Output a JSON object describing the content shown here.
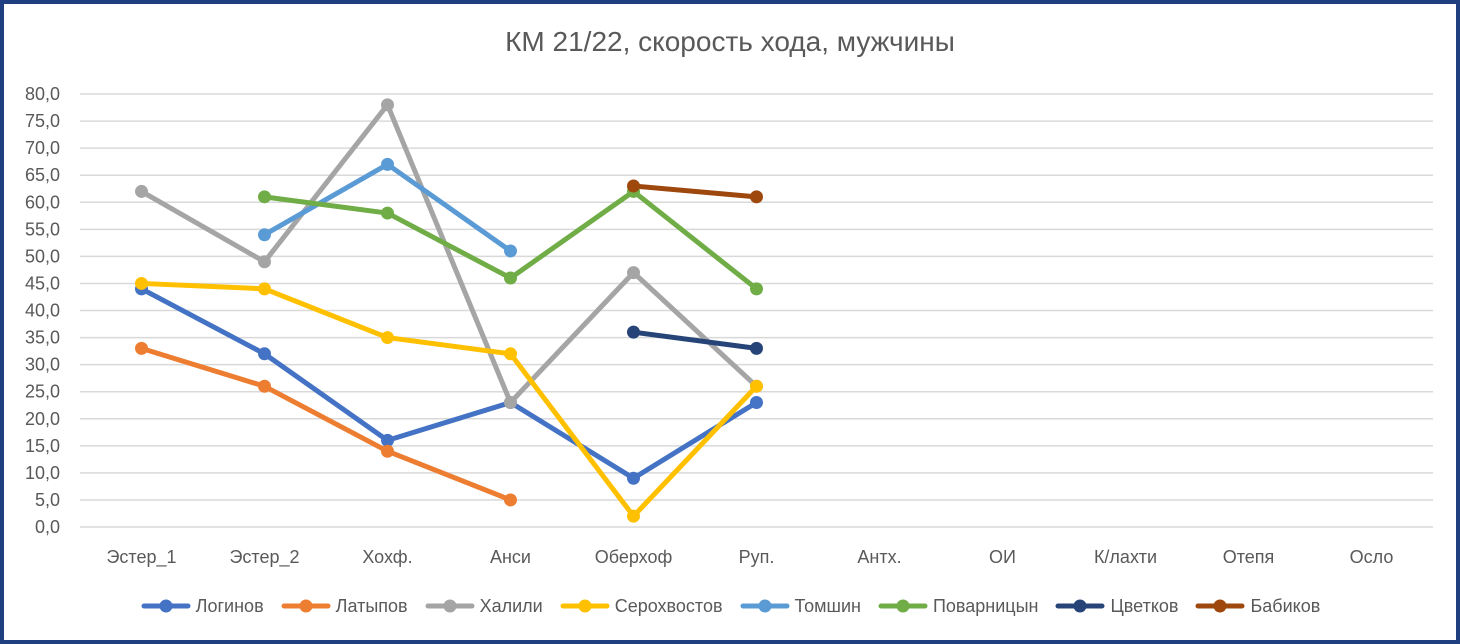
{
  "chart_data": {
    "type": "line",
    "title": "КМ 21/22, скорость хода, мужчины",
    "xlabel": "",
    "ylabel": "",
    "categories": [
      "Эстер_1",
      "Эстер_2",
      "Хохф.",
      "Анси",
      "Оберхоф",
      "Руп.",
      "Антх.",
      "ОИ",
      "К/лахти",
      "Отепя",
      "Осло"
    ],
    "ylim": [
      0,
      80
    ],
    "yticks": [
      "0,0",
      "5,0",
      "10,0",
      "15,0",
      "20,0",
      "25,0",
      "30,0",
      "35,0",
      "40,0",
      "45,0",
      "50,0",
      "55,0",
      "60,0",
      "65,0",
      "70,0",
      "75,0",
      "80,0"
    ],
    "ytick_values": [
      0,
      5,
      10,
      15,
      20,
      25,
      30,
      35,
      40,
      45,
      50,
      55,
      60,
      65,
      70,
      75,
      80
    ],
    "grid": true,
    "legend_position": "bottom",
    "series": [
      {
        "name": "Логинов",
        "color": "#4472c4",
        "values": [
          44,
          32,
          16,
          23,
          9,
          23,
          null,
          null,
          null,
          null,
          null
        ]
      },
      {
        "name": "Латыпов",
        "color": "#ed7d31",
        "values": [
          33,
          26,
          14,
          5,
          null,
          null,
          null,
          null,
          null,
          null,
          null
        ]
      },
      {
        "name": "Халили",
        "color": "#a5a5a5",
        "values": [
          62,
          49,
          78,
          23,
          47,
          26,
          null,
          null,
          null,
          null,
          null
        ]
      },
      {
        "name": "Серохвостов",
        "color": "#ffc000",
        "values": [
          45,
          44,
          35,
          32,
          2,
          26,
          null,
          null,
          null,
          null,
          null
        ]
      },
      {
        "name": "Томшин",
        "color": "#5b9bd5",
        "values": [
          null,
          54,
          67,
          51,
          null,
          null,
          null,
          null,
          null,
          null,
          null
        ]
      },
      {
        "name": "Поварницын",
        "color": "#70ad47",
        "values": [
          null,
          61,
          58,
          46,
          62,
          44,
          null,
          null,
          null,
          null,
          null
        ]
      },
      {
        "name": "Цветков",
        "color": "#264478",
        "values": [
          null,
          null,
          null,
          null,
          36,
          33,
          null,
          null,
          null,
          null,
          null
        ]
      },
      {
        "name": "Бабиков",
        "color": "#9e480e",
        "values": [
          null,
          null,
          null,
          null,
          63,
          61,
          null,
          null,
          null,
          null,
          null
        ]
      }
    ]
  }
}
